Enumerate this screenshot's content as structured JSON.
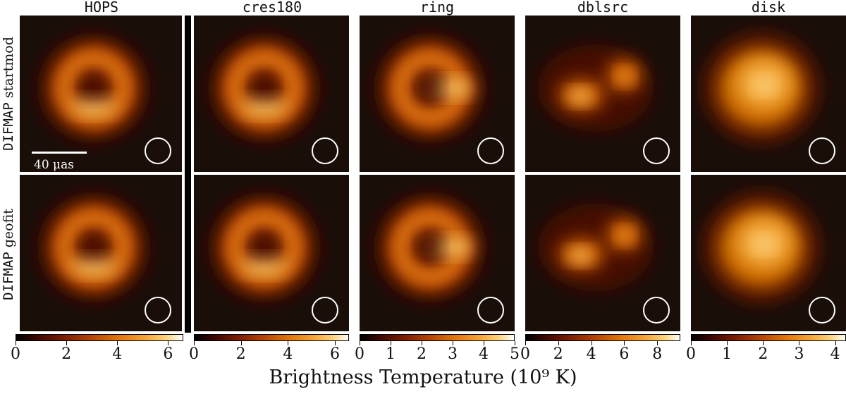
{
  "columns": [
    {
      "title": "HOPS"
    },
    {
      "title": "cres180"
    },
    {
      "title": "ring"
    },
    {
      "title": "dblsrc"
    },
    {
      "title": "disk"
    }
  ],
  "rows": [
    {
      "label_mono": "DIFMAP",
      "label_text": "startmod"
    },
    {
      "label_mono": "DIFMAP",
      "label_text": "geofit"
    }
  ],
  "scale_bar": {
    "label": "40 μas"
  },
  "colorbars": [
    {
      "ticks": [
        "0",
        "2",
        "4",
        "6"
      ],
      "max": 6.6
    },
    {
      "ticks": [
        "0",
        "2",
        "4",
        "6"
      ],
      "max": 6.6
    },
    {
      "ticks": [
        "0",
        "1",
        "2",
        "3",
        "4",
        "5"
      ],
      "max": 5.0
    },
    {
      "ticks": [
        "0",
        "2",
        "4",
        "6",
        "8"
      ],
      "max": 9.4
    },
    {
      "ticks": [
        "0",
        "1",
        "2",
        "3",
        "4"
      ],
      "max": 4.3
    }
  ],
  "colorbar_label": "Brightness Temperature (10⁹ K)",
  "colormap": "afmhot"
}
